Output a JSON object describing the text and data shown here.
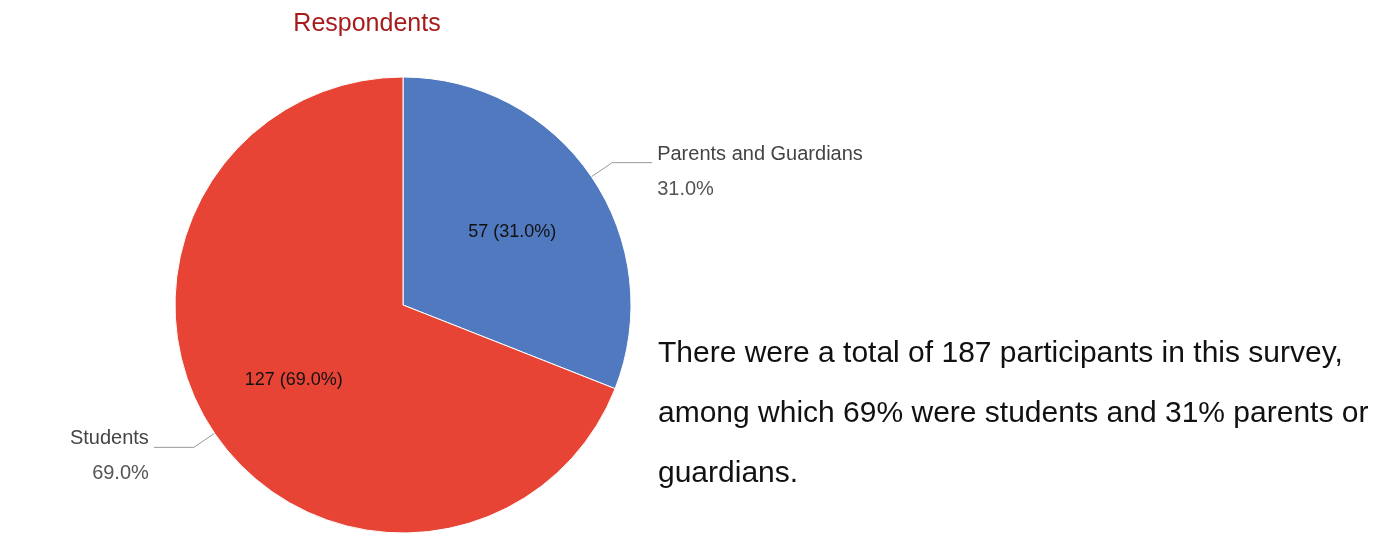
{
  "chart_data": {
    "type": "pie",
    "title": "Respondents",
    "categories": [
      "Parents and Guardians",
      "Students"
    ],
    "values": [
      57,
      127
    ],
    "colors": [
      "#5079bf",
      "#e74436"
    ],
    "value_labels": [
      "57 (31.0%)",
      "127 (69.0%)"
    ],
    "legend": false,
    "annotations": [
      {
        "text": "31.0%",
        "x": "Parents and Guardians"
      },
      {
        "text": "69.0%",
        "x": "Students"
      },
      "There were a total of 187 participants in this survey, among which 69% were students and 31% parents or guardians."
    ]
  }
}
